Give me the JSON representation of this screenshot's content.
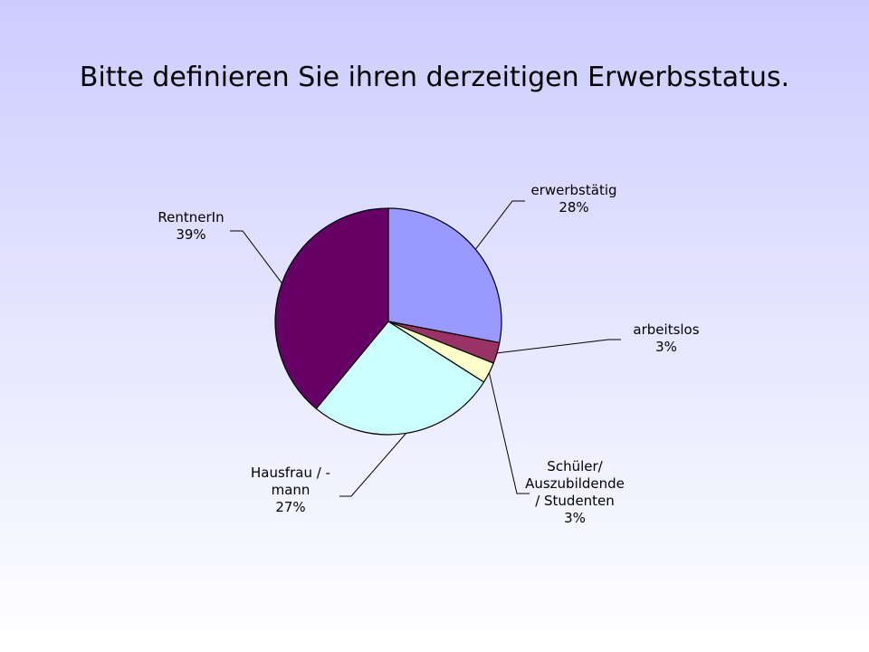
{
  "title": "Bitte definieren Sie ihren derzeitigen Erwerbsstatus.",
  "chart_data": {
    "type": "pie",
    "title": "Bitte definieren Sie ihren derzeitigen Erwerbsstatus.",
    "start_angle_deg": 0,
    "direction": "clockwise",
    "slices": [
      {
        "label_lines": [
          "erwerbstätig"
        ],
        "value": 28,
        "value_label": "28%",
        "color": "#9999ff"
      },
      {
        "label_lines": [
          "arbeitslos"
        ],
        "value": 3,
        "value_label": "3%",
        "color": "#993366"
      },
      {
        "label_lines": [
          "Schüler/",
          "Auszubildende",
          "/ Studenten"
        ],
        "value": 3,
        "value_label": "3%",
        "color": "#ffffcc"
      },
      {
        "label_lines": [
          "Hausfrau / -",
          "mann"
        ],
        "value": 27,
        "value_label": "27%",
        "color": "#ccffff"
      },
      {
        "label_lines": [
          "RentnerIn"
        ],
        "value": 39,
        "value_label": "39%",
        "color": "#660066"
      }
    ],
    "data_labels": "category-and-percent",
    "legend": "none"
  }
}
